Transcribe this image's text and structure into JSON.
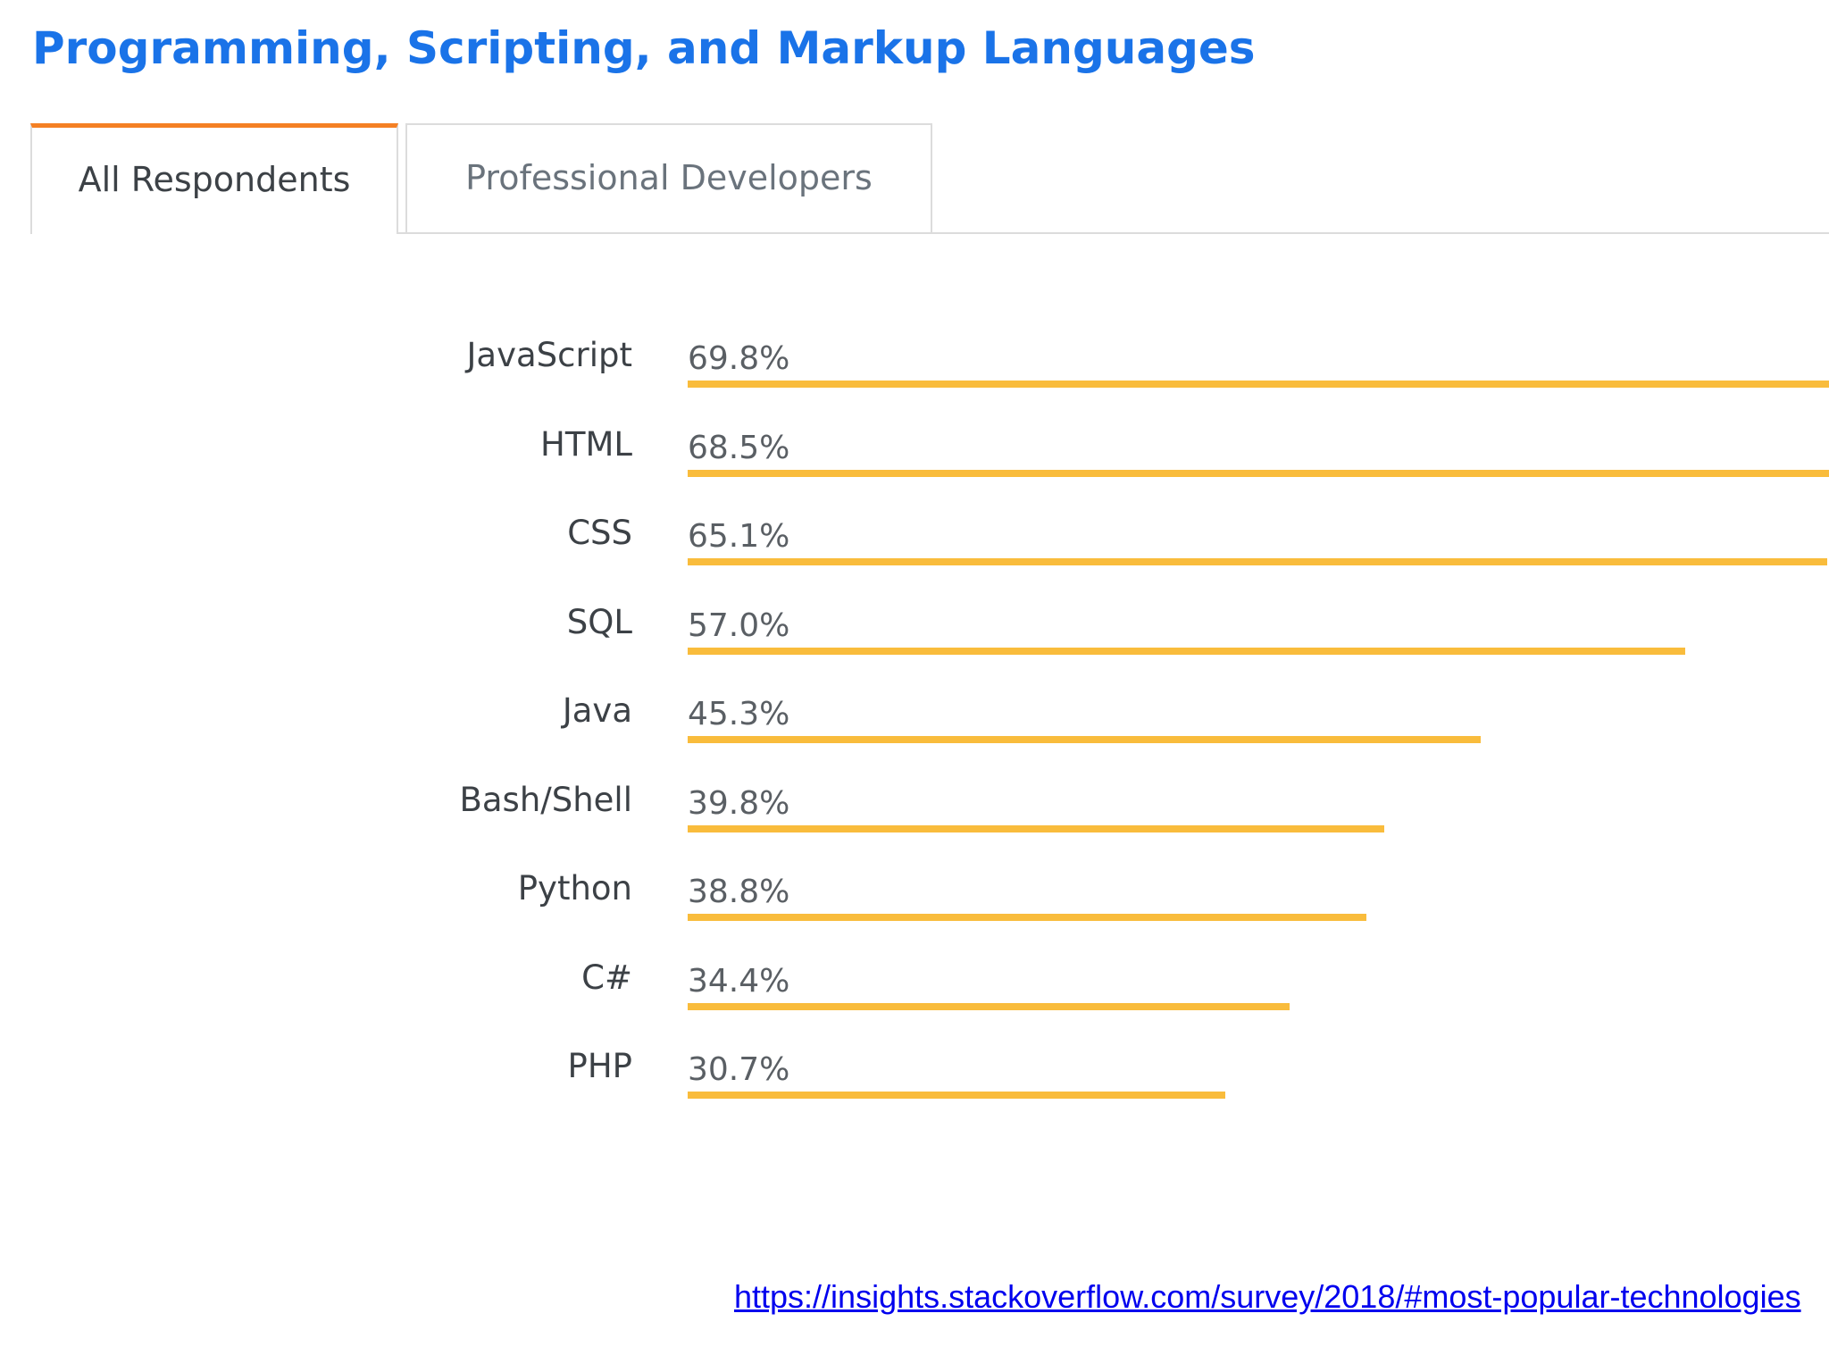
{
  "page": {
    "title": "Programming, Scripting, and Markup Languages",
    "tabs": [
      {
        "label": "All Respondents",
        "active": true
      },
      {
        "label": "Professional Developers",
        "active": false
      }
    ],
    "source_link": "https://insights.stackoverflow.com/survey/2018/#most-popular-technologies"
  },
  "colors": {
    "title": "#1a73e8",
    "bar": "#f9bc3c",
    "active_tab_accent": "#f48024"
  },
  "chart_data": {
    "type": "bar",
    "orientation": "horizontal",
    "title": "",
    "xlabel": "",
    "ylabel": "",
    "categories": [
      "JavaScript",
      "HTML",
      "CSS",
      "SQL",
      "Java",
      "Bash/Shell",
      "Python",
      "C#",
      "PHP"
    ],
    "values": [
      69.8,
      68.5,
      65.1,
      57.0,
      45.3,
      39.8,
      38.8,
      34.4,
      30.7
    ],
    "value_labels": [
      "69.8%",
      "68.5%",
      "65.1%",
      "57.0%",
      "45.3%",
      "39.8%",
      "38.8%",
      "34.4%",
      "30.7%"
    ],
    "unit": "%",
    "grid": false,
    "legend": "none"
  }
}
